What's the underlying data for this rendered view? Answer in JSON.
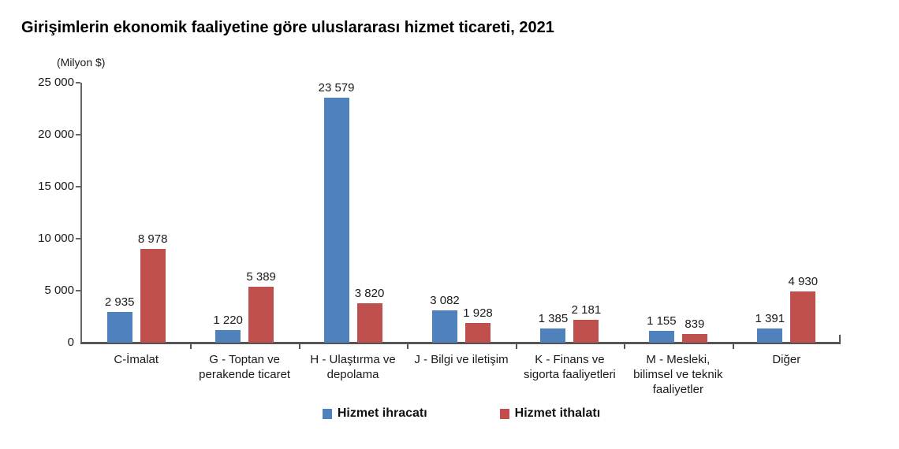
{
  "title": "Girişimlerin ekonomik faaliyetine göre uluslararası hizmet ticareti, 2021",
  "chart_data": {
    "type": "bar",
    "title": "Girişimlerin ekonomik faaliyetine göre uluslararası hizmet ticareti, 2021",
    "unit_label": "(Milyon $)",
    "categories": [
      "C-İmalat",
      "G - Toptan ve perakende ticaret",
      "H - Ulaştırma ve depolama",
      "J - Bilgi ve iletişim",
      "K - Finans ve sigorta faaliyetleri",
      "M - Mesleki, bilimsel ve teknik faaliyetler",
      "Diğer"
    ],
    "category_label_lines": [
      [
        "C-İmalat"
      ],
      [
        "G - Toptan ve",
        "perakende ticaret"
      ],
      [
        "H - Ulaştırma ve",
        "depolama"
      ],
      [
        "J - Bilgi ve iletişim"
      ],
      [
        "K - Finans ve",
        "sigorta faaliyetleri"
      ],
      [
        "M - Mesleki,",
        "bilimsel ve teknik",
        "faaliyetler"
      ],
      [
        "Diğer"
      ]
    ],
    "series": [
      {
        "name": "Hizmet ihracatı",
        "color": "#4F81BD",
        "values": [
          2935,
          1220,
          23579,
          3082,
          1385,
          1155,
          1391
        ],
        "labels": [
          "2 935",
          "1 220",
          "23 579",
          "3 082",
          "1 385",
          "1 155",
          "1 391"
        ]
      },
      {
        "name": "Hizmet ithalatı",
        "color": "#C0504D",
        "values": [
          8978,
          5389,
          3820,
          1928,
          2181,
          839,
          4930
        ],
        "labels": [
          "8 978",
          "5 389",
          "3 820",
          "1 928",
          "2 181",
          "839",
          "4 930"
        ]
      }
    ],
    "y_axis": {
      "min": 0,
      "max": 25000,
      "step": 5000,
      "tick_labels": [
        "0",
        "5 000",
        "10 000",
        "15 000",
        "20 000",
        "25 000"
      ]
    },
    "legend_position": "bottom",
    "grid": false
  }
}
